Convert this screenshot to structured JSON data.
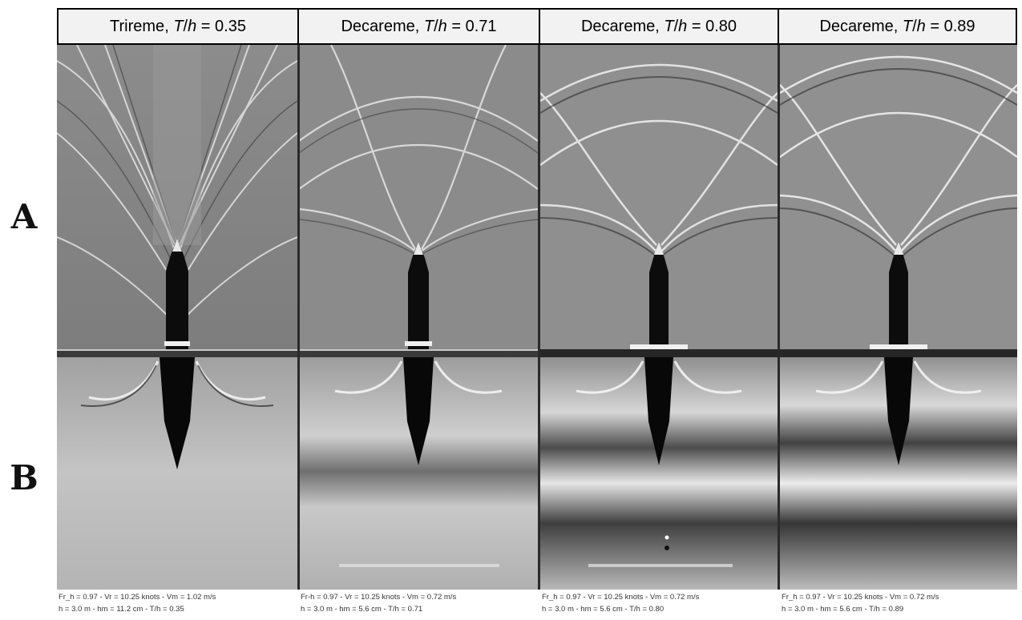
{
  "row_labels": {
    "a": "A",
    "b": "B"
  },
  "panels": [
    {
      "vessel": "Trireme",
      "ratio_symbol_t": "T",
      "ratio_symbol_h": "h",
      "ratio_value": "= 0.35",
      "caption_line1": "Fr_h = 0.97  -  Vr = 10.25 knots  -  Vm = 1.02 m/s",
      "caption_line2": "h = 3.0 m  -  hm = 11.2 cm  -  T/h = 0.35"
    },
    {
      "vessel": "Decareme",
      "ratio_symbol_t": "T",
      "ratio_symbol_h": "h",
      "ratio_value": "= 0.71",
      "caption_line1": "Fr-h = 0.97  -  Vr = 10.25 knots  -  Vm = 0.72 m/s",
      "caption_line2": "h = 3.0 m  -  hm = 5.6 cm  -  T/h = 0.71"
    },
    {
      "vessel": "Decareme",
      "ratio_symbol_t": "T",
      "ratio_symbol_h": "h",
      "ratio_value": "= 0.80",
      "caption_line1": "Fr_h = 0.97  -  Vr = 10.25 knots  -  Vm = 0.72 m/s",
      "caption_line2": "h = 3.0 m  -  hm = 5.6 cm  -  T/h = 0.80"
    },
    {
      "vessel": "Decareme",
      "ratio_symbol_t": "T",
      "ratio_symbol_h": "h",
      "ratio_value": "= 0.89",
      "caption_line1": "Fr_h = 0.97  -  Vr = 10.25 knots  -  Vm = 0.72 m/s",
      "caption_line2": "h = 3.0 m  -  hm = 5.6 cm  -  T/h = 0.89"
    }
  ],
  "colors": {
    "panel_gray": "#8a8a8a",
    "hull": "#0c0c0c",
    "wave_light": "#e8e8e8",
    "wave_dark": "#2e2e2e"
  }
}
